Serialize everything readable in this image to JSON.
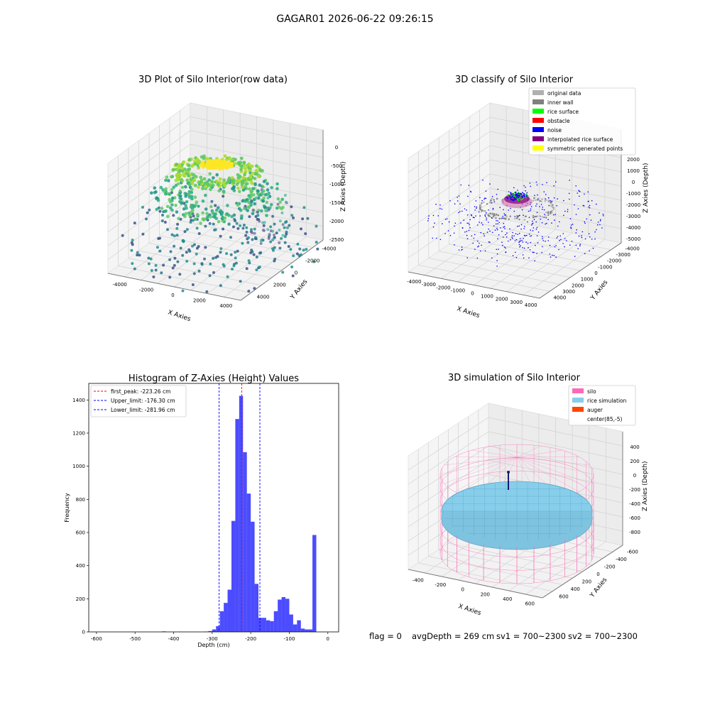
{
  "suptitle": "GAGAR01 2026-06-22 09:26:15",
  "panel1": {
    "title": "3D Plot of Silo Interior(row data)",
    "xlabel": "X Axies",
    "ylabel": "Y Axies",
    "zlabel": "Z Axies (Depth)",
    "xticks": [
      "-4000",
      "-2000",
      "0",
      "2000",
      "4000"
    ],
    "yticks": [
      "-4000",
      "-2000",
      "0",
      "2000",
      "4000"
    ],
    "zticks": [
      "0",
      "-500",
      "-1000",
      "-1500",
      "-2000",
      "-2500"
    ]
  },
  "panel2": {
    "title": "3D classify of Silo Interior",
    "xlabel": "X Axies",
    "ylabel": "Y Axies",
    "zlabel": "Z Axies (Depth)",
    "xticks": [
      "-4000",
      "-3000",
      "-2000",
      "-1000",
      "0",
      "1000",
      "2000",
      "3000",
      "4000"
    ],
    "yticks": [
      "-4000",
      "-3000",
      "-2000",
      "-1000",
      "0",
      "1000",
      "2000",
      "3000",
      "4000"
    ],
    "zticks": [
      "2000",
      "1000",
      "0",
      "-1000",
      "-2000",
      "-3000",
      "-4000",
      "-5000"
    ],
    "legend": [
      {
        "label": "original data",
        "color": "#b0b0b0"
      },
      {
        "label": "inner wall",
        "color": "#808080"
      },
      {
        "label": "rice surface",
        "color": "#00ff00"
      },
      {
        "label": "obstacle",
        "color": "#ff0000"
      },
      {
        "label": "noise",
        "color": "#0000ff"
      },
      {
        "label": "interpolated rice surface",
        "color": "#800080"
      },
      {
        "label": "symmetric generated points",
        "color": "#ffff00"
      }
    ]
  },
  "panel4": {
    "title": "3D simulation of Silo Interior",
    "xlabel": "X Axies",
    "ylabel": "Y Axies",
    "zlabel": "Z Axies (Depth)",
    "xticks": [
      "-400",
      "-200",
      "0",
      "200",
      "400",
      "600"
    ],
    "yticks": [
      "-600",
      "-400",
      "-200",
      "0",
      "200",
      "400",
      "600"
    ],
    "zticks": [
      "400",
      "200",
      "0",
      "-200",
      "-400",
      "-600",
      "-800"
    ],
    "legend": [
      {
        "label": "silo",
        "color": "#ff69b4"
      },
      {
        "label": "rice simulation",
        "color": "#87ceeb"
      },
      {
        "label": "auger",
        "color": "#ff4500"
      },
      {
        "label": "center(85,-5)",
        "color": "#ffffff"
      }
    ]
  },
  "footer": {
    "flag": "flag = 0",
    "avg": "avgDepth = 269 cm",
    "sv1": "sv1 = 700~2300",
    "sv2": "sv2 = 700~2300"
  },
  "colors": {
    "hist_bar": "#0000ff",
    "peak_line": "#ff0000",
    "limit_line": "#0000ff"
  },
  "chart_data": [
    {
      "type": "bar",
      "title": "Histogram of Z-Axies (Height) Values",
      "xlabel": "Depth (cm)",
      "ylabel": "Frequency",
      "xlim": [
        -620,
        28
      ],
      "ylim": [
        0,
        1500
      ],
      "xticks": [
        -600,
        -500,
        -400,
        -300,
        -200,
        -100,
        0
      ],
      "yticks": [
        0,
        200,
        400,
        600,
        800,
        1000,
        1200,
        1400
      ],
      "bin_width": 10,
      "bins": [
        {
          "x": -430,
          "value": 3
        },
        {
          "x": -390,
          "value": 1
        },
        {
          "x": -320,
          "value": 2
        },
        {
          "x": -310,
          "value": 5
        },
        {
          "x": -300,
          "value": 15
        },
        {
          "x": -290,
          "value": 35
        },
        {
          "x": -280,
          "value": 125
        },
        {
          "x": -270,
          "value": 175
        },
        {
          "x": -260,
          "value": 255
        },
        {
          "x": -250,
          "value": 670
        },
        {
          "x": -240,
          "value": 1285
        },
        {
          "x": -230,
          "value": 1425
        },
        {
          "x": -220,
          "value": 1085
        },
        {
          "x": -210,
          "value": 835
        },
        {
          "x": -200,
          "value": 665
        },
        {
          "x": -190,
          "value": 290
        },
        {
          "x": -180,
          "value": 85
        },
        {
          "x": -170,
          "value": 85
        },
        {
          "x": -160,
          "value": 70
        },
        {
          "x": -150,
          "value": 65
        },
        {
          "x": -140,
          "value": 125
        },
        {
          "x": -130,
          "value": 195
        },
        {
          "x": -120,
          "value": 210
        },
        {
          "x": -110,
          "value": 200
        },
        {
          "x": -100,
          "value": 105
        },
        {
          "x": -90,
          "value": 45
        },
        {
          "x": -80,
          "value": 70
        },
        {
          "x": -70,
          "value": 20
        },
        {
          "x": -60,
          "value": 15
        },
        {
          "x": -50,
          "value": 15
        },
        {
          "x": -40,
          "value": 585
        }
      ],
      "lines": [
        {
          "label": "first_peak: -223.26 cm",
          "x": -223.26,
          "color": "#ff0000"
        },
        {
          "label": "Upper_limit: -176.30 cm",
          "x": -176.3,
          "color": "#0000ff"
        },
        {
          "label": "Lower_limit: -281.96 cm",
          "x": -281.96,
          "color": "#0000ff"
        }
      ]
    }
  ]
}
